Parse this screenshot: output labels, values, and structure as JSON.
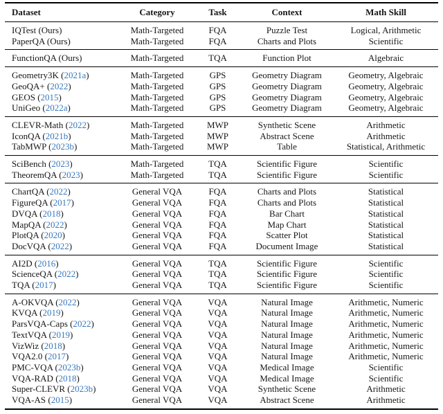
{
  "table": {
    "columns": [
      "Dataset",
      "Category",
      "Task",
      "Context",
      "Math Skill"
    ],
    "cite_color": "#3778BC",
    "text_color": "#161616",
    "groups": [
      {
        "rows": [
          {
            "name": "IQTest",
            "cite": "Ours",
            "cite_is_link": false,
            "category": "Math-Targeted",
            "task": "FQA",
            "context": "Puzzle Test",
            "skill": "Logical, Arithmetic"
          },
          {
            "name": "PaperQA",
            "cite": "Ours",
            "cite_is_link": false,
            "category": "Math-Targeted",
            "task": "FQA",
            "context": "Charts and Plots",
            "skill": "Scientific"
          }
        ]
      },
      {
        "rows": [
          {
            "name": "FunctionQA",
            "cite": "Ours",
            "cite_is_link": false,
            "category": "Math-Targeted",
            "task": "TQA",
            "context": "Function Plot",
            "skill": "Algebraic"
          }
        ]
      },
      {
        "rows": [
          {
            "name": "Geometry3K",
            "cite": "2021a",
            "cite_is_link": true,
            "category": "Math-Targeted",
            "task": "GPS",
            "context": "Geometry Diagram",
            "skill": "Geometry, Algebraic"
          },
          {
            "name": "GeoQA+",
            "cite": "2022",
            "cite_is_link": true,
            "category": "Math-Targeted",
            "task": "GPS",
            "context": "Geometry Diagram",
            "skill": "Geometry, Algebraic"
          },
          {
            "name": "GEOS",
            "cite": "2015",
            "cite_is_link": true,
            "category": "Math-Targeted",
            "task": "GPS",
            "context": "Geometry Diagram",
            "skill": "Geometry, Algebraic"
          },
          {
            "name": "UniGeo",
            "cite": "2022a",
            "cite_is_link": true,
            "category": "Math-Targeted",
            "task": "GPS",
            "context": "Geometry Diagram",
            "skill": "Geometry, Algebraic"
          }
        ]
      },
      {
        "rows": [
          {
            "name": "CLEVR-Math",
            "cite": "2022",
            "cite_is_link": true,
            "category": "Math-Targeted",
            "task": "MWP",
            "context": "Synthetic Scene",
            "skill": "Arithmetic"
          },
          {
            "name": "IconQA",
            "cite": "2021b",
            "cite_is_link": true,
            "category": "Math-Targeted",
            "task": "MWP",
            "context": "Abstract Scene",
            "skill": "Arithmetic"
          },
          {
            "name": "TabMWP",
            "cite": "2023b",
            "cite_is_link": true,
            "category": "Math-Targeted",
            "task": "MWP",
            "context": "Table",
            "skill": "Statistical, Arithmetic"
          }
        ]
      },
      {
        "rows": [
          {
            "name": "SciBench",
            "cite": "2023",
            "cite_is_link": true,
            "category": "Math-Targeted",
            "task": "TQA",
            "context": "Scientific Figure",
            "skill": "Scientific"
          },
          {
            "name": "TheoremQA",
            "cite": "2023",
            "cite_is_link": true,
            "category": "Math-Targeted",
            "task": "TQA",
            "context": "Scientific Figure",
            "skill": "Scientific"
          }
        ]
      },
      {
        "rows": [
          {
            "name": "ChartQA",
            "cite": "2022",
            "cite_is_link": true,
            "category": "General VQA",
            "task": "FQA",
            "context": "Charts and Plots",
            "skill": "Statistical"
          },
          {
            "name": "FigureQA",
            "cite": "2017",
            "cite_is_link": true,
            "category": "General VQA",
            "task": "FQA",
            "context": "Charts and Plots",
            "skill": "Statistical"
          },
          {
            "name": "DVQA",
            "cite": "2018",
            "cite_is_link": true,
            "category": "General VQA",
            "task": "FQA",
            "context": "Bar Chart",
            "skill": "Statistical"
          },
          {
            "name": "MapQA",
            "cite": "2022",
            "cite_is_link": true,
            "category": "General VQA",
            "task": "FQA",
            "context": "Map Chart",
            "skill": "Statistical"
          },
          {
            "name": "PlotQA",
            "cite": "2020",
            "cite_is_link": true,
            "category": "General VQA",
            "task": "FQA",
            "context": "Scatter Plot",
            "skill": "Statistical"
          },
          {
            "name": "DocVQA",
            "cite": "2022",
            "cite_is_link": true,
            "category": "General VQA",
            "task": "FQA",
            "context": "Document Image",
            "skill": "Statistical"
          }
        ]
      },
      {
        "rows": [
          {
            "name": "AI2D",
            "cite": "2016",
            "cite_is_link": true,
            "category": "General VQA",
            "task": "TQA",
            "context": "Scientific Figure",
            "skill": "Scientific"
          },
          {
            "name": "ScienceQA",
            "cite": "2022",
            "cite_is_link": true,
            "category": "General VQA",
            "task": "TQA",
            "context": "Scientific Figure",
            "skill": "Scientific"
          },
          {
            "name": "TQA",
            "cite": "2017",
            "cite_is_link": true,
            "category": "General VQA",
            "task": "TQA",
            "context": "Scientific Figure",
            "skill": "Scientific"
          }
        ]
      },
      {
        "rows": [
          {
            "name": "A-OKVQA",
            "cite": "2022",
            "cite_is_link": true,
            "category": "General VQA",
            "task": "VQA",
            "context": "Natural Image",
            "skill": "Arithmetic, Numeric"
          },
          {
            "name": "KVQA",
            "cite": "2019",
            "cite_is_link": true,
            "category": "General VQA",
            "task": "VQA",
            "context": "Natural Image",
            "skill": "Arithmetic, Numeric"
          },
          {
            "name": "ParsVQA-Caps",
            "cite": "2022",
            "cite_is_link": true,
            "category": "General VQA",
            "task": "VQA",
            "context": "Natural Image",
            "skill": "Arithmetic, Numeric"
          },
          {
            "name": "TextVQA",
            "cite": "2019",
            "cite_is_link": true,
            "category": "General VQA",
            "task": "VQA",
            "context": "Natural Image",
            "skill": "Arithmetic, Numeric"
          },
          {
            "name": "VizWiz",
            "cite": "2018",
            "cite_is_link": true,
            "category": "General VQA",
            "task": "VQA",
            "context": "Natural Image",
            "skill": "Arithmetic, Numeric"
          },
          {
            "name": "VQA2.0",
            "cite": "2017",
            "cite_is_link": true,
            "category": "General VQA",
            "task": "VQA",
            "context": "Natural Image",
            "skill": "Arithmetic, Numeric"
          },
          {
            "name": "PMC-VQA",
            "cite": "2023b",
            "cite_is_link": true,
            "category": "General VQA",
            "task": "VQA",
            "context": "Medical Image",
            "skill": "Scientific"
          },
          {
            "name": "VQA-RAD",
            "cite": "2018",
            "cite_is_link": true,
            "category": "General VQA",
            "task": "VQA",
            "context": "Medical Image",
            "skill": "Scientific"
          },
          {
            "name": "Super-CLEVR",
            "cite": "2023b",
            "cite_is_link": true,
            "category": "General VQA",
            "task": "VQA",
            "context": "Synthetic Scene",
            "skill": "Arithmetic"
          },
          {
            "name": "VQA-AS",
            "cite": "2015",
            "cite_is_link": true,
            "category": "General VQA",
            "task": "VQA",
            "context": "Abstract Scene",
            "skill": "Arithmetic"
          }
        ]
      }
    ]
  }
}
